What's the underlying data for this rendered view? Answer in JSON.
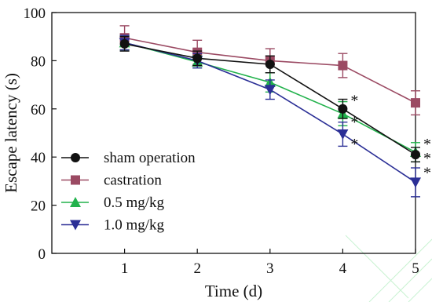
{
  "chart_data": {
    "type": "line",
    "xlabel": "Time (d)",
    "ylabel": "Escape latency (s)",
    "x": [
      1,
      2,
      3,
      4,
      5
    ],
    "xlim": [
      0,
      5
    ],
    "ylim": [
      0,
      100
    ],
    "xticks": [
      1,
      2,
      3,
      4,
      5
    ],
    "yticks": [
      0,
      20,
      40,
      60,
      80,
      100
    ],
    "grid": false,
    "legend_position": "bottom-left",
    "series": [
      {
        "name": "castration",
        "color": "#9b4a63",
        "marker": "square",
        "values": [
          89.5,
          83.5,
          80,
          78,
          62.5
        ],
        "errors": [
          5,
          5,
          5,
          5,
          5
        ]
      },
      {
        "name": "0.5 mg/kg",
        "color": "#22b24c",
        "marker": "triangle-up",
        "values": [
          87.5,
          79.5,
          71,
          58,
          42
        ],
        "errors": [
          3,
          2.5,
          4,
          5,
          4
        ]
      },
      {
        "name": "1.0 mg/kg",
        "color": "#2b2f96",
        "marker": "triangle-down",
        "values": [
          87.5,
          80,
          68,
          49.5,
          29.5
        ],
        "errors": [
          3,
          3,
          4,
          5,
          6
        ]
      },
      {
        "name": "sham operation",
        "color": "#111111",
        "marker": "circle",
        "values": [
          87,
          81,
          78.5,
          60,
          41
        ],
        "errors": [
          3,
          3,
          3.5,
          4,
          3
        ]
      }
    ],
    "legend_order": [
      "sham operation",
      "castration",
      "0.5 mg/kg",
      "1.0 mg/kg"
    ],
    "annotations": [
      {
        "text": "*",
        "x": 4,
        "y": 64
      },
      {
        "text": "*",
        "x": 4,
        "y": 55
      },
      {
        "text": "*",
        "x": 4,
        "y": 46
      },
      {
        "text": "*",
        "x": 5,
        "y": 46
      },
      {
        "text": "*",
        "x": 5,
        "y": 40
      },
      {
        "text": "*",
        "x": 5,
        "y": 34
      }
    ]
  }
}
